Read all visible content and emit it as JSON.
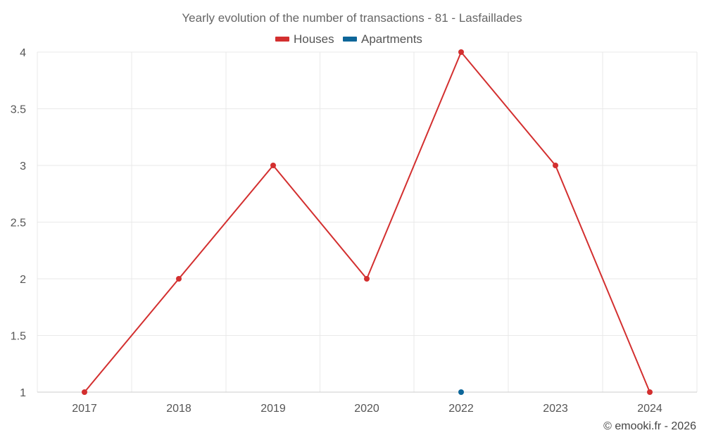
{
  "chart_data": {
    "type": "line",
    "title": "Yearly evolution of the number of transactions - 81 - Lasfaillades",
    "categories": [
      "2017",
      "2018",
      "2019",
      "2020",
      "2022",
      "2023",
      "2024"
    ],
    "y_ticks": [
      "1",
      "1.5",
      "2",
      "2.5",
      "3",
      "3.5",
      "4"
    ],
    "ylim": [
      1,
      4
    ],
    "grid": true,
    "legend_position": "top-center",
    "series": [
      {
        "name": "Houses",
        "color": "#d32f2f",
        "values": [
          1,
          2,
          3,
          2,
          4,
          3,
          1
        ]
      },
      {
        "name": "Apartments",
        "color": "#0d6699",
        "values": [
          null,
          null,
          null,
          null,
          1,
          null,
          null
        ]
      }
    ]
  },
  "credit": "© emooki.fr - 2026"
}
